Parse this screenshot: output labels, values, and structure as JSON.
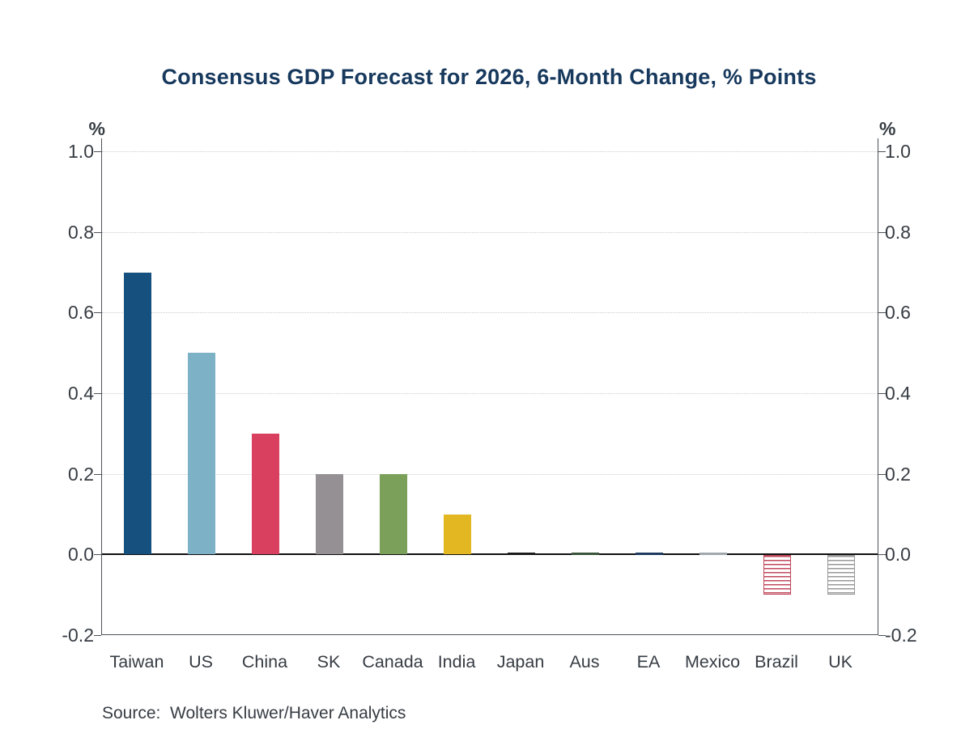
{
  "title": "Consensus GDP Forecast for 2026, 6-Month Change, % Points",
  "source_label": "Source:  Wolters Kluwer/Haver Analytics",
  "axes": {
    "left_unit": "%",
    "right_unit": "%"
  },
  "colors": {
    "background": "#ffffff",
    "title_text": "#17395d",
    "axis_text": "#363c43",
    "axis_line": "#4d5358",
    "zero_line": "#101010",
    "gridline": "#cdcdcd"
  },
  "chart_data": {
    "type": "bar",
    "title": "Consensus GDP Forecast for 2026, 6-Month Change, % Points",
    "xlabel": "",
    "ylabel": "%",
    "ylim": [
      -0.2,
      1.0
    ],
    "yticks": [
      1.0,
      0.8,
      0.6,
      0.4,
      0.2,
      0.0,
      -0.2
    ],
    "grid": "horizontal-dotted",
    "legend_position": "none",
    "categories": [
      "Taiwan",
      "US",
      "China",
      "SK",
      "Canada",
      "India",
      "Japan",
      "Aus",
      "EA",
      "Mexico",
      "Brazil",
      "UK"
    ],
    "values": [
      0.7,
      0.5,
      0.3,
      0.2,
      0.2,
      0.1,
      0.0,
      0.0,
      0.0,
      0.0,
      -0.1,
      -0.1
    ],
    "bar_colors": [
      "#15507f",
      "#7db1c5",
      "#d94060",
      "#949094",
      "#7aa05a",
      "#e3b722",
      "#1b1b1b",
      "#39543a",
      "#1e3a5f",
      "#9fa8ab",
      "#c1495c",
      "#999999"
    ],
    "bar_styles": [
      "solid",
      "solid",
      "solid",
      "solid",
      "solid",
      "solid",
      "solid",
      "solid",
      "solid",
      "solid",
      "hatched",
      "hatched"
    ],
    "source": "Source:  Wolters Kluwer/Haver Analytics"
  }
}
